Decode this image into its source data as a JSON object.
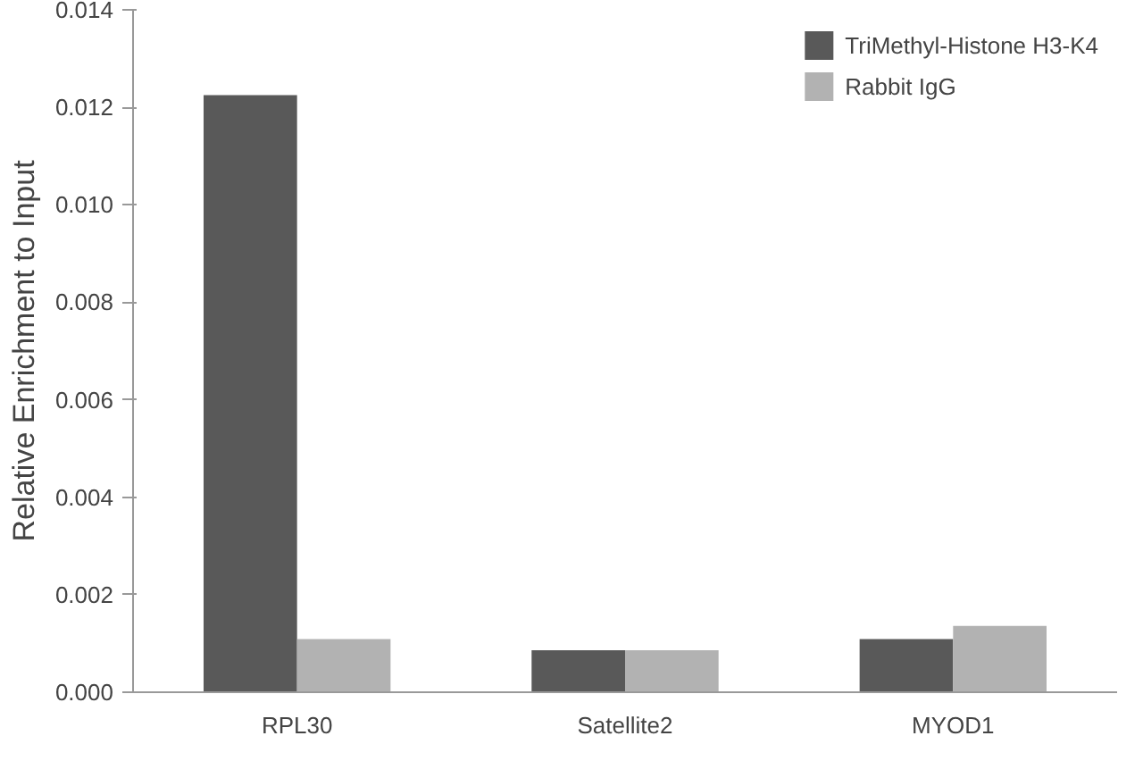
{
  "chart_data": {
    "type": "bar",
    "ylabel": "Relative Enrichment to Input",
    "categories": [
      "RPL30",
      "Satellite2",
      "MYOD1"
    ],
    "series": [
      {
        "name": "TriMethyl-Histone H3-K4",
        "color": "#595959",
        "values": [
          0.01225,
          0.00086,
          0.00109
        ]
      },
      {
        "name": "Rabbit IgG",
        "color": "#b2b2b2",
        "values": [
          0.00109,
          0.00086,
          0.00136
        ]
      }
    ],
    "ylim": [
      0,
      0.014
    ],
    "yticks": [
      {
        "value": 0,
        "label": "0.000"
      },
      {
        "value": 0.002,
        "label": "0.002"
      },
      {
        "value": 0.004,
        "label": "0.004"
      },
      {
        "value": 0.006,
        "label": "0.006"
      },
      {
        "value": 0.008,
        "label": "0.008"
      },
      {
        "value": 0.01,
        "label": "0.010"
      },
      {
        "value": 0.012,
        "label": "0.012"
      },
      {
        "value": 0.014,
        "label": "0.014"
      }
    ],
    "grid": false,
    "legend": "top right"
  }
}
